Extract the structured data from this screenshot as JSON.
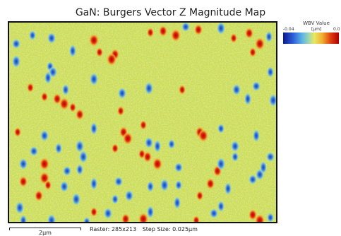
{
  "title": "GaN: Burgers Vector Z Magnitude Map",
  "legend": {
    "title": "WBV Value",
    "min_label": "-0.04",
    "unit_label": "[μm]",
    "max_label": "0.0",
    "colors": [
      "#0a1a8c",
      "#2f5ed8",
      "#5ab4e6",
      "#9ed8b0",
      "#e8e860",
      "#f2b030",
      "#e04010",
      "#b00000"
    ]
  },
  "scale_bar": {
    "label": "2μm"
  },
  "raster": {
    "raster_text": "Raster: 285x213",
    "step_text": "Step Size: 0.025μm"
  }
}
